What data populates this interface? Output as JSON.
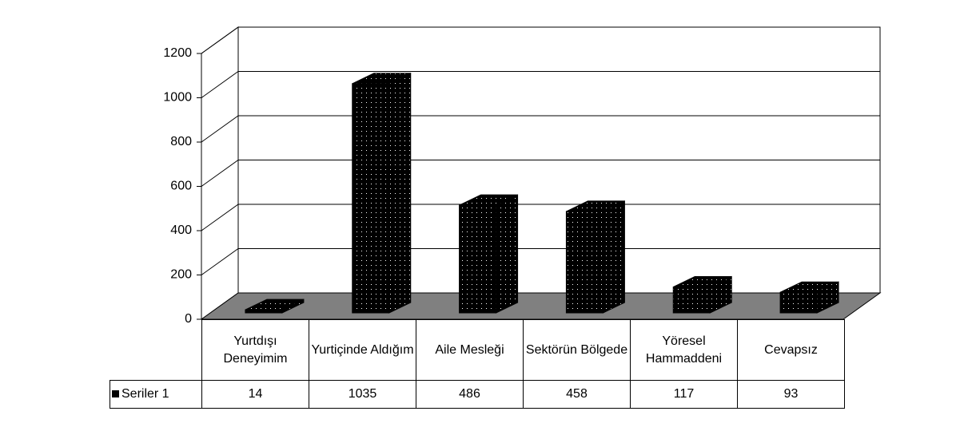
{
  "chart_data": {
    "type": "bar",
    "categories": [
      "Yurtdışı Deneyimim",
      "Yurtiçinde Aldığım",
      "Aile Mesleği",
      "Sektörün Bölgede",
      "Yöresel Hammaddeni",
      "Cevapsız"
    ],
    "series": [
      {
        "name": "Seriler 1",
        "color": "#000000",
        "values": [
          14,
          1035,
          486,
          458,
          117,
          93
        ]
      }
    ],
    "ylim": [
      0,
      1200
    ],
    "yticks": [
      0,
      200,
      400,
      600,
      800,
      1000,
      1200
    ],
    "grid": true
  }
}
